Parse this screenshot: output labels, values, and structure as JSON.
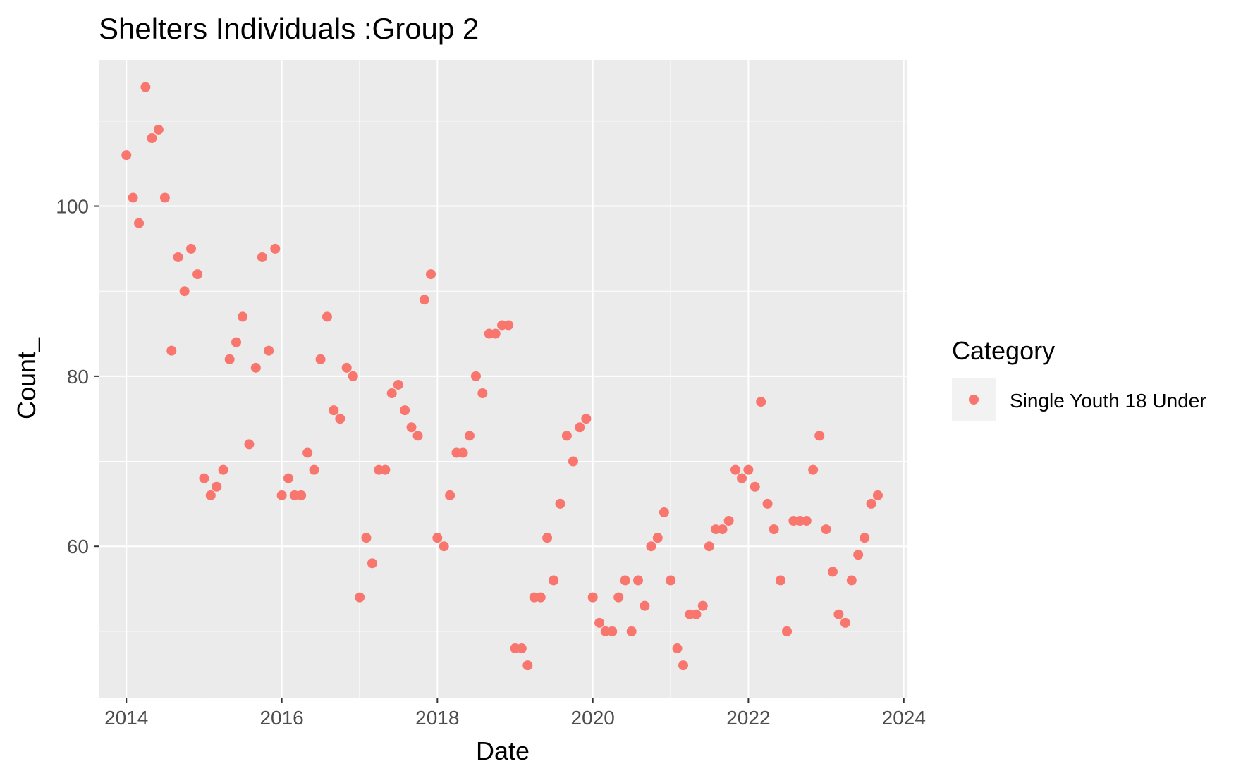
{
  "chart_data": {
    "type": "scatter",
    "title": "Shelters Individuals :Group 2",
    "xlabel": "Date",
    "ylabel": "Count_",
    "x_type": "date",
    "xlim": [
      "2013-08-24",
      "2024-01-15"
    ],
    "ylim": [
      42.2,
      117.2
    ],
    "x_ticks": [
      "2014-01-01",
      "2016-01-01",
      "2018-01-01",
      "2020-01-01",
      "2022-01-01",
      "2024-01-01"
    ],
    "x_tick_labels": [
      "2014",
      "2016",
      "2018",
      "2020",
      "2022",
      "2024"
    ],
    "y_ticks": [
      60,
      80,
      100
    ],
    "y_tick_labels": [
      "60",
      "80",
      "100"
    ],
    "grid": true,
    "legend": {
      "title": "Category",
      "position": "right",
      "entries": [
        "Single Youth 18 Under"
      ]
    },
    "series": [
      {
        "name": "Single Youth 18 Under",
        "color": "#F8766D",
        "points": [
          [
            "2014-01-01",
            106
          ],
          [
            "2014-02-01",
            101
          ],
          [
            "2014-03-01",
            98
          ],
          [
            "2014-04-01",
            114
          ],
          [
            "2014-05-01",
            108
          ],
          [
            "2014-06-01",
            109
          ],
          [
            "2014-07-01",
            101
          ],
          [
            "2014-08-01",
            83
          ],
          [
            "2014-09-01",
            94
          ],
          [
            "2014-10-01",
            90
          ],
          [
            "2014-11-01",
            95
          ],
          [
            "2014-12-01",
            92
          ],
          [
            "2015-01-01",
            68
          ],
          [
            "2015-02-01",
            66
          ],
          [
            "2015-03-01",
            67
          ],
          [
            "2015-04-01",
            69
          ],
          [
            "2015-05-01",
            82
          ],
          [
            "2015-06-01",
            84
          ],
          [
            "2015-07-01",
            87
          ],
          [
            "2015-08-01",
            72
          ],
          [
            "2015-09-01",
            81
          ],
          [
            "2015-10-01",
            94
          ],
          [
            "2015-11-01",
            83
          ],
          [
            "2015-12-01",
            95
          ],
          [
            "2016-01-01",
            66
          ],
          [
            "2016-02-01",
            68
          ],
          [
            "2016-03-01",
            66
          ],
          [
            "2016-04-01",
            66
          ],
          [
            "2016-05-01",
            71
          ],
          [
            "2016-06-01",
            69
          ],
          [
            "2016-07-01",
            82
          ],
          [
            "2016-08-01",
            87
          ],
          [
            "2016-09-01",
            76
          ],
          [
            "2016-10-01",
            75
          ],
          [
            "2016-11-01",
            81
          ],
          [
            "2016-12-01",
            80
          ],
          [
            "2017-01-01",
            54
          ],
          [
            "2017-02-01",
            61
          ],
          [
            "2017-03-01",
            58
          ],
          [
            "2017-04-01",
            69
          ],
          [
            "2017-05-01",
            69
          ],
          [
            "2017-06-01",
            78
          ],
          [
            "2017-07-01",
            79
          ],
          [
            "2017-08-01",
            76
          ],
          [
            "2017-09-01",
            74
          ],
          [
            "2017-10-01",
            73
          ],
          [
            "2017-11-01",
            89
          ],
          [
            "2017-12-01",
            92
          ],
          [
            "2018-01-01",
            61
          ],
          [
            "2018-02-01",
            60
          ],
          [
            "2018-03-01",
            66
          ],
          [
            "2018-04-01",
            71
          ],
          [
            "2018-05-01",
            71
          ],
          [
            "2018-06-01",
            73
          ],
          [
            "2018-07-01",
            80
          ],
          [
            "2018-08-01",
            78
          ],
          [
            "2018-09-01",
            85
          ],
          [
            "2018-10-01",
            85
          ],
          [
            "2018-11-01",
            86
          ],
          [
            "2018-12-01",
            86
          ],
          [
            "2019-01-01",
            48
          ],
          [
            "2019-02-01",
            48
          ],
          [
            "2019-03-01",
            46
          ],
          [
            "2019-04-01",
            54
          ],
          [
            "2019-05-01",
            54
          ],
          [
            "2019-06-01",
            61
          ],
          [
            "2019-07-01",
            56
          ],
          [
            "2019-08-01",
            65
          ],
          [
            "2019-09-01",
            73
          ],
          [
            "2019-10-01",
            70
          ],
          [
            "2019-11-01",
            74
          ],
          [
            "2019-12-01",
            75
          ],
          [
            "2020-01-01",
            54
          ],
          [
            "2020-02-01",
            51
          ],
          [
            "2020-03-01",
            50
          ],
          [
            "2020-04-01",
            50
          ],
          [
            "2020-05-01",
            54
          ],
          [
            "2020-06-01",
            56
          ],
          [
            "2020-07-01",
            50
          ],
          [
            "2020-08-01",
            56
          ],
          [
            "2020-09-01",
            53
          ],
          [
            "2020-10-01",
            60
          ],
          [
            "2020-11-01",
            61
          ],
          [
            "2020-12-01",
            64
          ],
          [
            "2021-01-01",
            56
          ],
          [
            "2021-02-01",
            48
          ],
          [
            "2021-03-01",
            46
          ],
          [
            "2021-04-01",
            52
          ],
          [
            "2021-05-01",
            52
          ],
          [
            "2021-06-01",
            53
          ],
          [
            "2021-07-01",
            60
          ],
          [
            "2021-08-01",
            62
          ],
          [
            "2021-09-01",
            62
          ],
          [
            "2021-10-01",
            63
          ],
          [
            "2021-11-01",
            69
          ],
          [
            "2021-12-01",
            68
          ],
          [
            "2022-01-01",
            69
          ],
          [
            "2022-02-01",
            67
          ],
          [
            "2022-03-01",
            77
          ],
          [
            "2022-04-01",
            65
          ],
          [
            "2022-05-01",
            62
          ],
          [
            "2022-06-01",
            56
          ],
          [
            "2022-07-01",
            50
          ],
          [
            "2022-08-01",
            63
          ],
          [
            "2022-09-01",
            63
          ],
          [
            "2022-10-01",
            63
          ],
          [
            "2022-11-01",
            69
          ],
          [
            "2022-12-01",
            73
          ],
          [
            "2023-01-01",
            62
          ],
          [
            "2023-02-01",
            57
          ],
          [
            "2023-03-01",
            52
          ],
          [
            "2023-04-01",
            51
          ],
          [
            "2023-05-01",
            56
          ],
          [
            "2023-06-01",
            59
          ],
          [
            "2023-07-01",
            61
          ],
          [
            "2023-08-01",
            65
          ],
          [
            "2023-09-01",
            66
          ]
        ]
      }
    ]
  }
}
